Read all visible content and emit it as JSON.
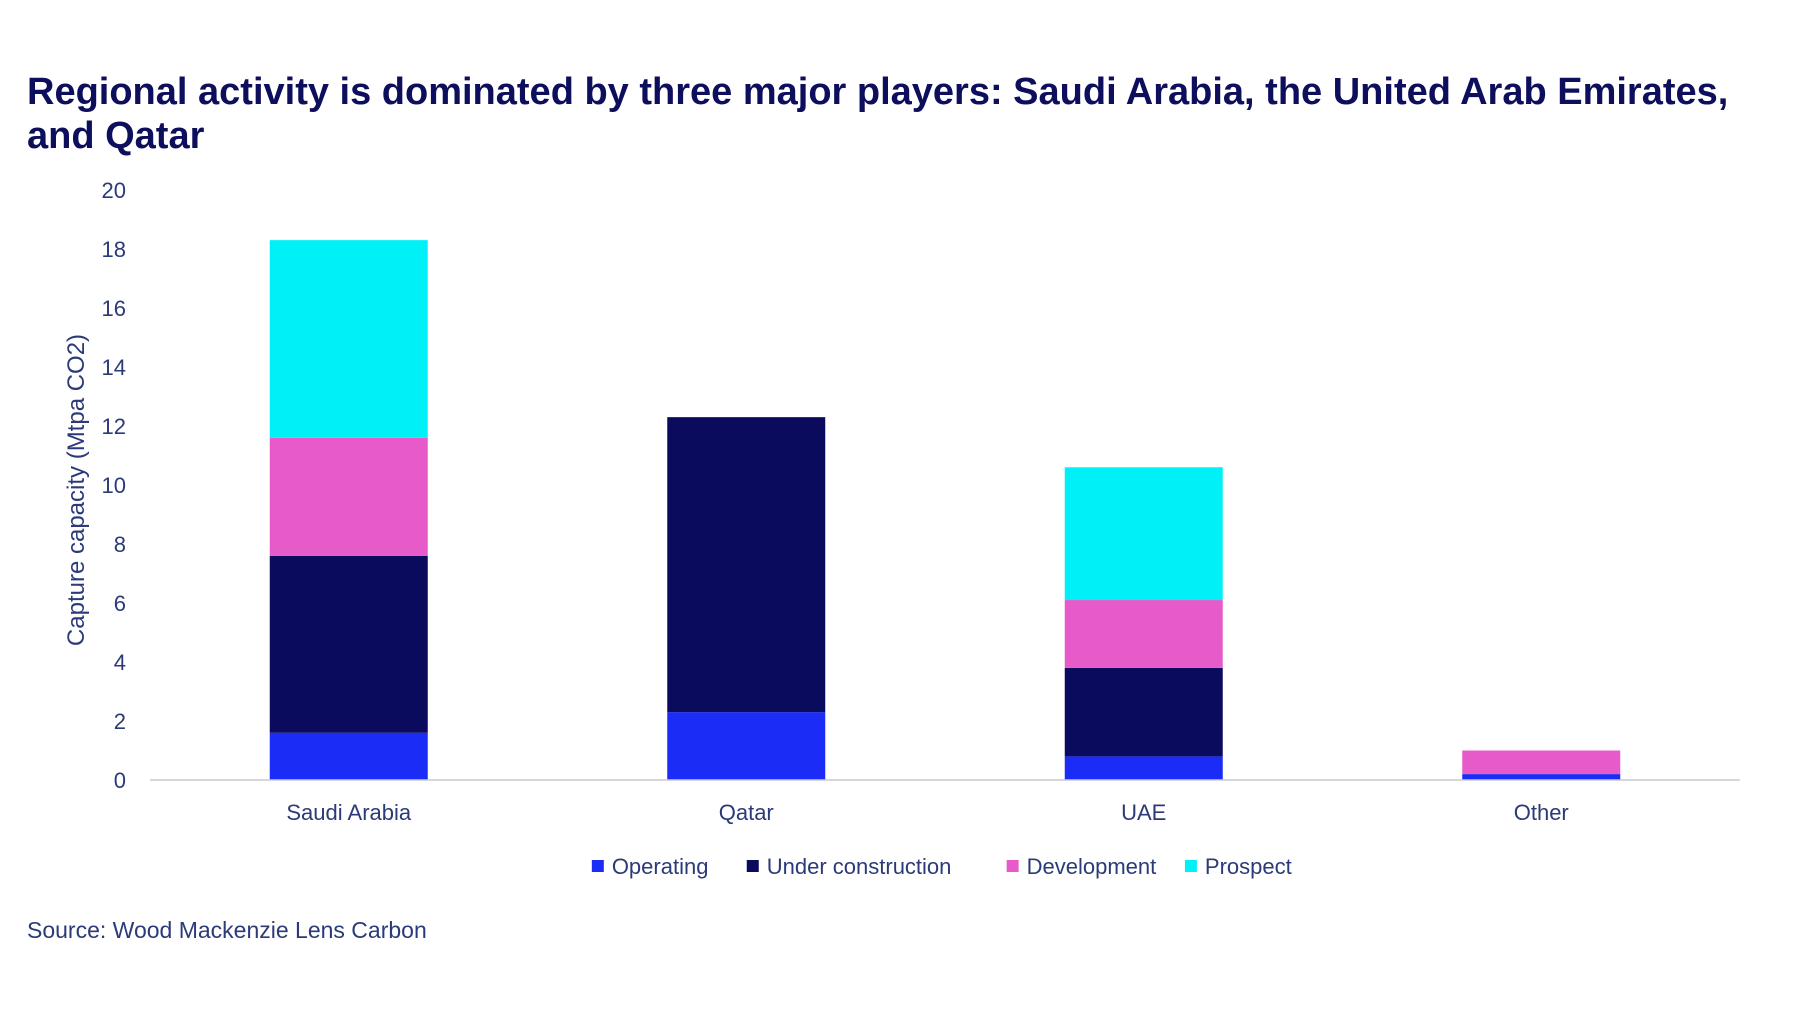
{
  "source": "Source: Wood Mackenzie Lens Carbon",
  "chart_data": {
    "type": "bar",
    "stacked": true,
    "title": "Regional activity is dominated by three major players: Saudi Arabia, the United Arab Emirates, and Qatar",
    "xlabel": "",
    "ylabel": "Capture capacity (Mtpa CO2)",
    "ylim": [
      0,
      20
    ],
    "yticks": [
      0,
      2,
      4,
      6,
      8,
      10,
      12,
      14,
      16,
      18,
      20
    ],
    "grid": false,
    "legend_position": "bottom",
    "categories": [
      "Saudi Arabia",
      "Qatar",
      "UAE",
      "Other"
    ],
    "series": [
      {
        "name": "Operating",
        "color": "#1a2cf5",
        "values": [
          1.6,
          2.3,
          0.8,
          0.2
        ]
      },
      {
        "name": "Under construction",
        "color": "#0b0b5e",
        "values": [
          6.0,
          10.0,
          3.0,
          0.0
        ]
      },
      {
        "name": "Development",
        "color": "#e75ac9",
        "values": [
          4.0,
          0.0,
          2.3,
          0.8
        ]
      },
      {
        "name": "Prospect",
        "color": "#00f0f8",
        "values": [
          6.7,
          0.0,
          4.5,
          0.0
        ]
      }
    ]
  }
}
